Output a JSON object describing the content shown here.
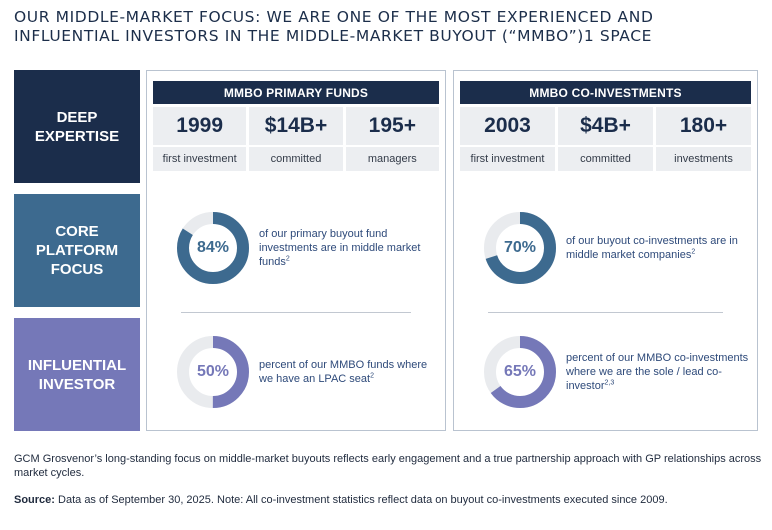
{
  "title": "OUR MIDDLE-MARKET FOCUS: WE ARE ONE OF THE MOST EXPERIENCED AND INFLUENTIAL INVESTORS IN THE MIDDLE-MARKET BUYOUT (“MMBO”)1 SPACE",
  "row_labels": {
    "deep_expertise": [
      "DEEP",
      "EXPERTISE"
    ],
    "core_platform": [
      "CORE",
      "PLATFORM",
      "FOCUS"
    ],
    "influential": [
      "INFLUENTIAL",
      "INVESTOR"
    ]
  },
  "primary": {
    "heading": "MMBO PRIMARY FUNDS",
    "stats": [
      {
        "value": "1999",
        "label": "first investment"
      },
      {
        "value": "$14B+",
        "label": "committed"
      },
      {
        "value": "195+",
        "label": "managers"
      }
    ],
    "donut1": {
      "percent": 84,
      "text": "84%",
      "desc": "of our primary buyout fund investments are in middle market funds",
      "sup": "2",
      "color": "#3d6a8f"
    },
    "donut2": {
      "percent": 50,
      "text": "50%",
      "desc": "percent of our MMBO funds where we have an LPAC seat",
      "sup": "2",
      "color": "#7578b8"
    }
  },
  "coinvest": {
    "heading": "MMBO CO-INVESTMENTS",
    "stats": [
      {
        "value": "2003",
        "label": "first investment"
      },
      {
        "value": "$4B+",
        "label": "committed"
      },
      {
        "value": "180+",
        "label": "investments"
      }
    ],
    "donut1": {
      "percent": 70,
      "text": "70%",
      "desc": "of our buyout co-investments are in middle market companies",
      "sup": "2",
      "color": "#3d6a8f"
    },
    "donut2": {
      "percent": 65,
      "text": "65%",
      "desc": "percent of our MMBO co-investments where we are the sole / lead co-investor",
      "sup": "2,3",
      "color": "#7578b8"
    }
  },
  "track_color": "#e9ebee",
  "footer_text": "GCM Grosvenor’s long-standing focus on middle-market buyouts reflects early engagement and a true partnership approach with GP relationships across market cycles.",
  "source_label": "Source:",
  "source_text": " Data as of September 30, 2025. Note: All co-investment statistics reflect data on buyout co-investments executed since 2009."
}
